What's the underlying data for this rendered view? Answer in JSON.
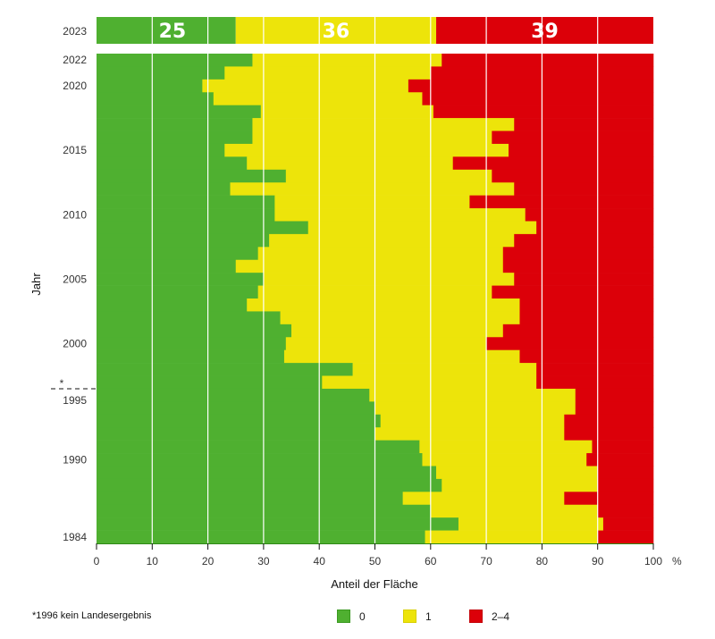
{
  "chart_data": {
    "type": "bar",
    "orientation": "horizontal-stacked-100",
    "title": "",
    "xlabel": "Anteil der Fläche",
    "x_unit": "%",
    "ylabel": "Jahr",
    "xlim": [
      0,
      100
    ],
    "x_ticks": [
      0,
      10,
      20,
      30,
      40,
      50,
      60,
      70,
      80,
      90,
      100
    ],
    "y_tick_labels": [
      "2023",
      "2022",
      "2020",
      "2015",
      "2010",
      "2005",
      "2000",
      "1995",
      "1990",
      "1984"
    ],
    "grid": true,
    "legend_position": "bottom",
    "footnote": "*1996 kein Landesergebnis",
    "gap_marker": {
      "after_year": 1997,
      "label": "*"
    },
    "series": [
      {
        "name": "0",
        "color": "#4fb030"
      },
      {
        "name": "1",
        "color": "#ede40a"
      },
      {
        "name": "2–4",
        "color": "#dc0009"
      }
    ],
    "highlight": {
      "year": 2023,
      "values": [
        25,
        36,
        39
      ]
    },
    "rows": [
      {
        "year": 2022,
        "values": [
          28,
          34,
          38
        ]
      },
      {
        "year": 2021,
        "values": [
          23,
          37,
          40
        ]
      },
      {
        "year": 2020,
        "values": [
          19,
          37,
          44
        ]
      },
      {
        "year": 2019,
        "values": [
          21,
          37.5,
          41.5
        ]
      },
      {
        "year": 2018,
        "values": [
          29.5,
          31,
          39.5
        ]
      },
      {
        "year": 2017,
        "values": [
          28,
          47,
          25
        ]
      },
      {
        "year": 2016,
        "values": [
          28,
          43,
          29
        ]
      },
      {
        "year": 2015,
        "values": [
          23,
          51,
          26
        ]
      },
      {
        "year": 2014,
        "values": [
          27,
          37,
          36
        ]
      },
      {
        "year": 2013,
        "values": [
          34,
          37,
          29
        ]
      },
      {
        "year": 2012,
        "values": [
          24,
          51,
          25
        ]
      },
      {
        "year": 2011,
        "values": [
          32,
          35,
          33
        ]
      },
      {
        "year": 2010,
        "values": [
          32,
          45,
          23
        ]
      },
      {
        "year": 2009,
        "values": [
          38,
          41,
          21
        ]
      },
      {
        "year": 2008,
        "values": [
          31,
          44,
          25
        ]
      },
      {
        "year": 2007,
        "values": [
          29,
          44,
          27
        ]
      },
      {
        "year": 2006,
        "values": [
          25,
          48,
          27
        ]
      },
      {
        "year": 2005,
        "values": [
          30,
          45,
          25
        ]
      },
      {
        "year": 2004,
        "values": [
          29,
          42,
          29
        ]
      },
      {
        "year": 2003,
        "values": [
          27,
          49,
          24
        ]
      },
      {
        "year": 2002,
        "values": [
          33,
          43,
          24
        ]
      },
      {
        "year": 2001,
        "values": [
          35,
          38,
          27
        ]
      },
      {
        "year": 2000,
        "values": [
          34,
          36,
          30
        ]
      },
      {
        "year": 1999,
        "values": [
          33.7,
          42.3,
          24
        ]
      },
      {
        "year": 1998,
        "values": [
          46,
          33,
          21
        ]
      },
      {
        "year": 1997,
        "values": [
          40.5,
          38.5,
          21
        ]
      },
      {
        "year": 1995,
        "values": [
          49,
          37,
          14
        ]
      },
      {
        "year": 1994,
        "values": [
          50,
          36,
          14
        ]
      },
      {
        "year": 1993,
        "values": [
          51,
          33,
          16
        ]
      },
      {
        "year": 1992,
        "values": [
          50,
          34,
          16
        ]
      },
      {
        "year": 1991,
        "values": [
          58,
          31,
          11
        ]
      },
      {
        "year": 1990,
        "values": [
          58.5,
          29.5,
          12
        ]
      },
      {
        "year": 1989,
        "values": [
          61,
          29,
          10
        ]
      },
      {
        "year": 1988,
        "values": [
          62,
          28,
          10
        ]
      },
      {
        "year": 1987,
        "values": [
          55,
          29,
          16
        ]
      },
      {
        "year": 1986,
        "values": [
          60,
          30,
          10
        ]
      },
      {
        "year": 1985,
        "values": [
          65,
          26,
          9
        ]
      },
      {
        "year": 1984,
        "values": [
          59,
          31,
          10
        ]
      }
    ]
  }
}
